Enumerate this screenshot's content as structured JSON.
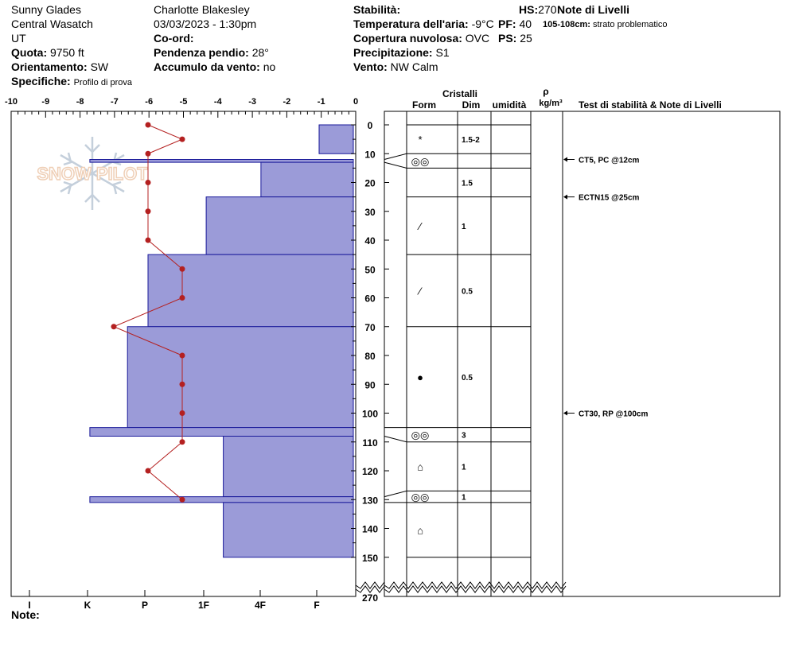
{
  "header": {
    "location": "Sunny Glades",
    "range": "Central Wasatch",
    "state": "UT",
    "elevation_label": "Quota:",
    "elevation_value": "9750 ft",
    "aspect_label": "Orientamento:",
    "aspect_value": "SW",
    "specifics_label": "Specifiche:",
    "specifics_value": "Profilo di prova",
    "observer": "Charlotte Blakesley",
    "datetime": "03/03/2023 - 1:30pm",
    "coord_label": "Co-ord:",
    "slope_label": "Pendenza pendio:",
    "slope_value": "28°",
    "wind_loading_label": "Accumulo da vento:",
    "wind_loading_value": "no",
    "stability_label": "Stabilità:",
    "air_temp_label": "Temperatura dell'aria:",
    "air_temp_value": "-9°C",
    "sky_label": "Copertura nuvolosa:",
    "sky_value": "OVC",
    "precip_label": "Precipitazione:",
    "precip_value": "S1",
    "wind_label": "Vento:",
    "wind_value": "NW Calm",
    "hs_label": "HS:",
    "hs_value": "270",
    "pf_label": "PF:",
    "pf_value": "40",
    "ps_label": "PS:",
    "ps_value": "25",
    "layer_notes_title": "Note di Livelli",
    "layer_note_range": "105-108cm:",
    "layer_note_text": "strato problematico"
  },
  "columns": {
    "crystals": "Cristalli",
    "form": "Form",
    "size": "Dim",
    "moisture": "umidità",
    "rho": "ρ",
    "density_unit": "kg/m³",
    "tests": "Test di stabilità & Note di Livelli"
  },
  "note_label": "Note:",
  "colors": {
    "hardness_fill": "#9b9bd8",
    "hardness_stroke": "#1a1a9a",
    "temp_line": "#b42020"
  },
  "chart_data": {
    "type": "snow-profile",
    "temperature_axis": {
      "ticks": [
        "-10",
        "-9",
        "-8",
        "-7",
        "-6",
        "-5",
        "-4",
        "-3",
        "-2",
        "-1",
        "0"
      ],
      "range": [
        -10,
        0
      ]
    },
    "depth_axis": {
      "ticks": [
        "0",
        "10",
        "20",
        "30",
        "40",
        "50",
        "60",
        "70",
        "80",
        "90",
        "100",
        "110",
        "120",
        "130",
        "140",
        "150"
      ],
      "range": [
        0,
        150
      ],
      "break_label": "270"
    },
    "hardness_axis": {
      "ticks": [
        "I",
        "K",
        "P",
        "1F",
        "4F",
        "F"
      ]
    },
    "hardness_layers": [
      {
        "top": 0,
        "bottom": 10,
        "value": 1
      },
      {
        "top": 12,
        "bottom": 13,
        "value": 7.7
      },
      {
        "top": 13,
        "bottom": 25,
        "value": 2.7
      },
      {
        "top": 25,
        "bottom": 45,
        "value": 4.3
      },
      {
        "top": 45,
        "bottom": 70,
        "value": 6
      },
      {
        "top": 70,
        "bottom": 105,
        "value": 6.6
      },
      {
        "top": 105,
        "bottom": 108,
        "value": 7.7
      },
      {
        "top": 108,
        "bottom": 129,
        "value": 3.8
      },
      {
        "top": 129,
        "bottom": 131,
        "value": 7.7
      },
      {
        "top": 131,
        "bottom": 150,
        "value": 3.8
      }
    ],
    "temperature_profile": [
      {
        "depth": 0,
        "temp": -6
      },
      {
        "depth": 5,
        "temp": -5
      },
      {
        "depth": 10,
        "temp": -6
      },
      {
        "depth": 20,
        "temp": -6
      },
      {
        "depth": 30,
        "temp": -6
      },
      {
        "depth": 40,
        "temp": -6
      },
      {
        "depth": 50,
        "temp": -5
      },
      {
        "depth": 60,
        "temp": -5
      },
      {
        "depth": 70,
        "temp": -7
      },
      {
        "depth": 80,
        "temp": -5
      },
      {
        "depth": 90,
        "temp": -5
      },
      {
        "depth": 100,
        "temp": -5
      },
      {
        "depth": 110,
        "temp": -5
      },
      {
        "depth": 120,
        "temp": -6
      },
      {
        "depth": 130,
        "temp": -5
      }
    ],
    "layer_boundaries": [
      0,
      10,
      15,
      25,
      45,
      70,
      105,
      110,
      127,
      131,
      150
    ],
    "crystal_layers": [
      {
        "top": 0,
        "bottom": 10,
        "form": "*",
        "size": "1.5-2"
      },
      {
        "top": 10,
        "bottom": 15,
        "form": "◎◎",
        "size": ""
      },
      {
        "top": 15,
        "bottom": 25,
        "form": "",
        "size": "1.5"
      },
      {
        "top": 25,
        "bottom": 45,
        "form": "⁄",
        "size": "1"
      },
      {
        "top": 45,
        "bottom": 70,
        "form": "⁄",
        "size": "0.5"
      },
      {
        "top": 70,
        "bottom": 105,
        "form": "●",
        "size": "0.5"
      },
      {
        "top": 105,
        "bottom": 110,
        "form": "◎◎",
        "size": "3"
      },
      {
        "top": 110,
        "bottom": 127,
        "form": "⌂",
        "size": "1"
      },
      {
        "top": 127,
        "bottom": 131,
        "form": "◎◎",
        "size": "1"
      },
      {
        "top": 131,
        "bottom": 150,
        "form": "⌂",
        "size": ""
      }
    ],
    "stability_tests": [
      {
        "depth": 12,
        "text": "CT5, PC @12cm"
      },
      {
        "depth": 25,
        "text": "ECTN15 @25cm"
      },
      {
        "depth": 100,
        "text": "CT30, RP @100cm"
      }
    ],
    "watermark": "SNOW PILOT"
  }
}
